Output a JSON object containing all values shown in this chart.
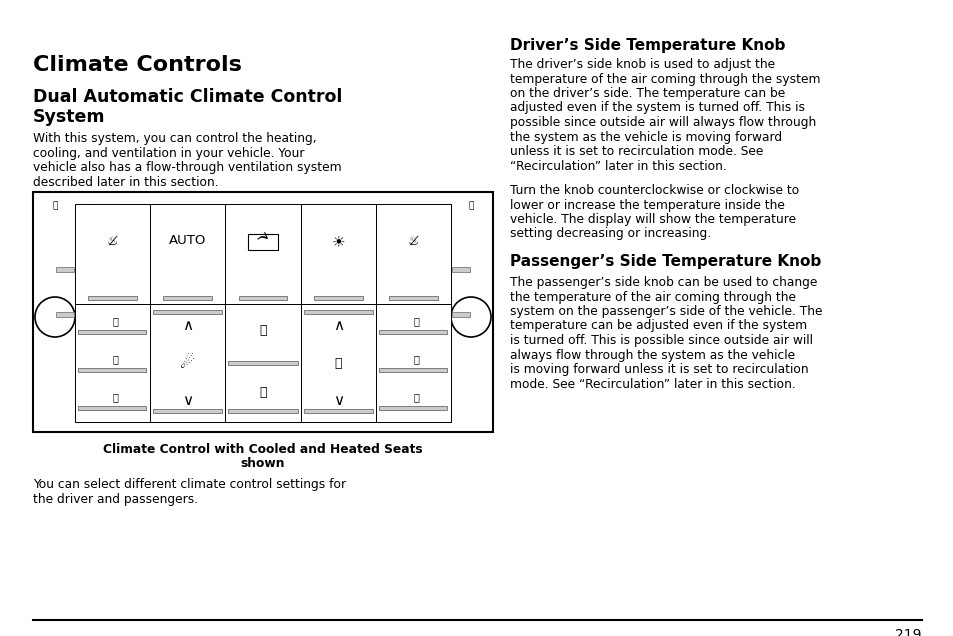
{
  "page_title": "Climate Controls",
  "section_title_line1": "Dual Automatic Climate Control",
  "section_title_line2": "System",
  "left_para1_lines": [
    "With this system, you can control the heating,",
    "cooling, and ventilation in your vehicle. Your",
    "vehicle also has a flow-through ventilation system",
    "described later in this section."
  ],
  "figure_caption_line1": "Climate Control with Cooled and Heated Seats",
  "figure_caption_line2": "shown",
  "left_para2_lines": [
    "You can select different climate control settings for",
    "the driver and passengers."
  ],
  "right_heading1": "Driver’s Side Temperature Knob",
  "right_para1_lines": [
    "The driver’s side knob is used to adjust the",
    "temperature of the air coming through the system",
    "on the driver’s side. The temperature can be",
    "adjusted even if the system is turned off. This is",
    "possible since outside air will always flow through",
    "the system as the vehicle is moving forward",
    "unless it is set to recirculation mode. See",
    "“Recirculation” later in this section."
  ],
  "right_para2_lines": [
    "Turn the knob counterclockwise or clockwise to",
    "lower or increase the temperature inside the",
    "vehicle. The display will show the temperature",
    "setting decreasing or increasing."
  ],
  "right_heading2": "Passenger’s Side Temperature Knob",
  "right_para3_lines": [
    "The passenger’s side knob can be used to change",
    "the temperature of the air coming through the",
    "system on the passenger’s side of the vehicle. The",
    "temperature can be adjusted even if the system",
    "is turned off. This is possible since outside air will",
    "always flow through the system as the vehicle",
    "is moving forward unless it is set to recirculation",
    "mode. See “Recirculation” later in this section."
  ],
  "page_number": "219",
  "bg_color": "#ffffff",
  "text_color": "#000000"
}
